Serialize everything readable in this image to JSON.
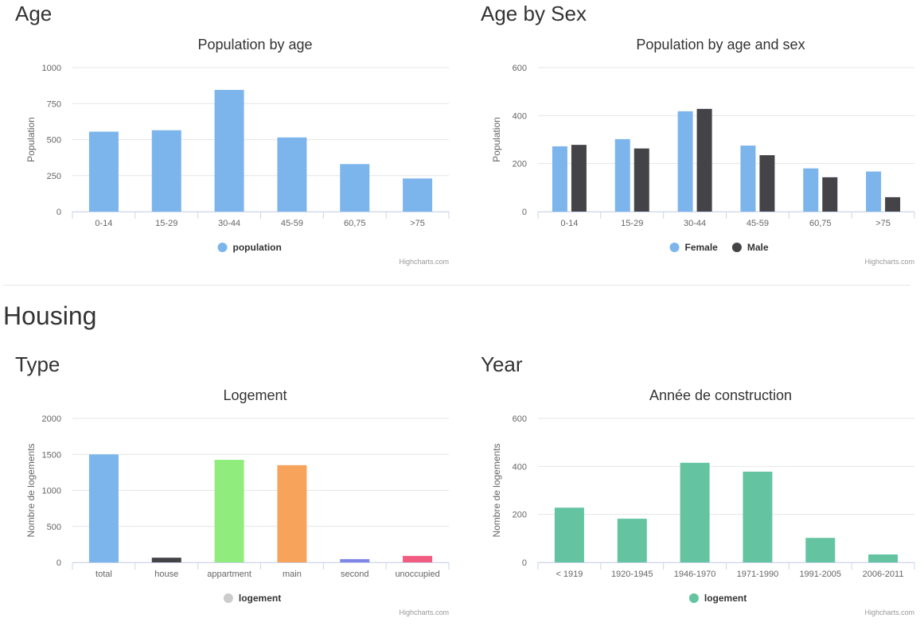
{
  "sections": {
    "age": "Age",
    "age_by_sex": "Age by Sex",
    "housing": "Housing",
    "type": "Type",
    "year": "Year"
  },
  "colors": {
    "blue": "#7cb5ec",
    "dark": "#434348",
    "green": "#90ed7d",
    "orange": "#f7a35c",
    "purple": "#8085e9",
    "pink": "#f15c80",
    "teal": "#64c4a2",
    "legend_grey": "#cccccc"
  },
  "chart_data": [
    {
      "id": "age",
      "type": "bar",
      "title": "Population by age",
      "ylabel": "Population",
      "xlabel": "",
      "ylim": [
        0,
        1000
      ],
      "yticks": [
        "0",
        "250",
        "500",
        "750",
        "1000"
      ],
      "categories": [
        "0-14",
        "15-29",
        "30-44",
        "45-59",
        "60,75",
        ">75"
      ],
      "series": [
        {
          "name": "population",
          "color": "#7cb5ec",
          "values": [
            555,
            565,
            845,
            515,
            330,
            230
          ]
        }
      ],
      "legend": [
        {
          "name": "population",
          "color": "#7cb5ec"
        }
      ],
      "credits": "Highcharts.com"
    },
    {
      "id": "age-sex",
      "type": "bar",
      "title": "Population by age and sex",
      "ylabel": "Population",
      "xlabel": "",
      "ylim": [
        0,
        600
      ],
      "yticks": [
        "0",
        "200",
        "400",
        "600"
      ],
      "categories": [
        "0-14",
        "15-29",
        "30-44",
        "45-59",
        "60,75",
        ">75"
      ],
      "series": [
        {
          "name": "Female",
          "color": "#7cb5ec",
          "values": [
            272,
            302,
            418,
            275,
            180,
            167
          ]
        },
        {
          "name": "Male",
          "color": "#434348",
          "values": [
            278,
            263,
            428,
            235,
            143,
            60
          ]
        }
      ],
      "legend": [
        {
          "name": "Female",
          "color": "#7cb5ec"
        },
        {
          "name": "Male",
          "color": "#434348"
        }
      ],
      "credits": "Highcharts.com"
    },
    {
      "id": "housing-type",
      "type": "bar",
      "title": "Logement",
      "ylabel": "Nombre de logements",
      "xlabel": "",
      "ylim": [
        0,
        2000
      ],
      "yticks": [
        "0",
        "500",
        "1000",
        "1500",
        "2000"
      ],
      "categories": [
        "total",
        "house",
        "appartment",
        "main",
        "second",
        "unoccupied"
      ],
      "series": [
        {
          "name": "logement",
          "values": [
            1500,
            65,
            1425,
            1350,
            45,
            90
          ],
          "point_colors": [
            "#7cb5ec",
            "#434348",
            "#90ed7d",
            "#f7a35c",
            "#8085e9",
            "#f15c80"
          ]
        }
      ],
      "legend": [
        {
          "name": "logement",
          "color": "#cccccc"
        }
      ],
      "credits": "Highcharts.com"
    },
    {
      "id": "housing-year",
      "type": "bar",
      "title": "Année de construction",
      "ylabel": "Nombre de logements",
      "xlabel": "",
      "ylim": [
        0,
        600
      ],
      "yticks": [
        "0",
        "200",
        "400",
        "600"
      ],
      "categories": [
        "< 1919",
        "1920-1945",
        "1946-1970",
        "1971-1990",
        "1991-2005",
        "2006-2011"
      ],
      "series": [
        {
          "name": "logement",
          "color": "#64c4a2",
          "values": [
            228,
            182,
            415,
            378,
            102,
            33
          ]
        }
      ],
      "legend": [
        {
          "name": "logement",
          "color": "#64c4a2"
        }
      ],
      "credits": "Highcharts.com"
    }
  ]
}
